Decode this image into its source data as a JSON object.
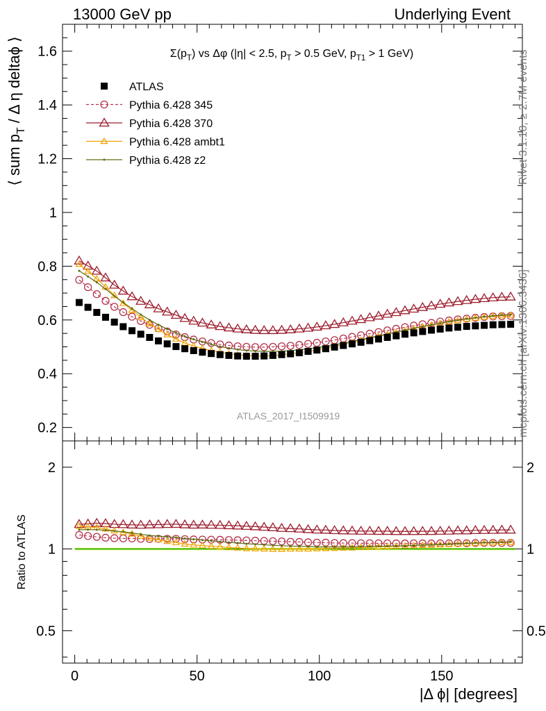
{
  "header": {
    "left": "13000 GeV pp",
    "right": "Underlying Event"
  },
  "side": {
    "rivet": "Rivet 3.1.10, ≥ 2.7M events",
    "mcplots": "mcplots.cern.ch [arXiv:1306.3436]"
  },
  "analysis_id": "ATLAS_2017_I1509919",
  "chart_data": [
    {
      "type": "scatter",
      "panel": "main",
      "title": "Σ(p_T) vs Δφ (|η| < 2.5, p_T > 0.5 GeV, p_T1 > 1 GeV)",
      "title_parts": [
        "Σ(p",
        "T",
        ") vs Δφ (|η| < 2.5, p",
        "T",
        " > 0.5 GeV, p",
        "T1",
        " > 1 GeV)"
      ],
      "xlabel": "|Δ ϕ| [degrees]",
      "ylabel": "⟨ sum p_T / Δ η deltaϕ ⟩",
      "ylabel_parts": [
        "⟨ sum p",
        "T",
        " / Δ η deltaϕ ⟩"
      ],
      "xlim": [
        -5,
        183
      ],
      "ylim": [
        0.15,
        1.7
      ],
      "yticks": [
        0.2,
        0.4,
        0.6,
        0.8,
        1,
        1.2,
        1.4,
        1.6
      ],
      "ytick_labels": [
        "0.2",
        "0.4",
        "0.6",
        "0.8",
        "1",
        "1.2",
        "1.4",
        "1.6"
      ],
      "legend_position": "top-left",
      "x": [
        1.8,
        5.4,
        9.0,
        12.6,
        16.2,
        19.8,
        23.4,
        27.0,
        30.6,
        34.2,
        37.8,
        41.4,
        45.0,
        48.6,
        52.2,
        55.8,
        59.4,
        63.0,
        66.6,
        70.2,
        73.8,
        77.4,
        81.0,
        84.6,
        88.2,
        91.8,
        95.4,
        99.0,
        102.6,
        106.2,
        109.8,
        113.4,
        117.0,
        120.6,
        124.2,
        127.8,
        131.4,
        135.0,
        138.6,
        142.2,
        145.8,
        149.4,
        153.0,
        156.6,
        160.2,
        163.8,
        167.4,
        171.0,
        174.6,
        178.2
      ],
      "series": [
        {
          "name": "ATLAS",
          "style": "atlas",
          "values": [
            0.665,
            0.647,
            0.628,
            0.61,
            0.592,
            0.575,
            0.56,
            0.547,
            0.535,
            0.522,
            0.511,
            0.501,
            0.493,
            0.486,
            0.48,
            0.475,
            0.471,
            0.468,
            0.466,
            0.465,
            0.465,
            0.466,
            0.468,
            0.471,
            0.474,
            0.478,
            0.483,
            0.488,
            0.493,
            0.499,
            0.505,
            0.511,
            0.517,
            0.523,
            0.529,
            0.535,
            0.541,
            0.547,
            0.552,
            0.557,
            0.562,
            0.566,
            0.57,
            0.573,
            0.576,
            0.578,
            0.58,
            0.582,
            0.583,
            0.584
          ]
        },
        {
          "name": "Pythia 6.428 345",
          "style": "p345",
          "values": [
            0.749,
            0.722,
            0.696,
            0.671,
            0.649,
            0.629,
            0.612,
            0.596,
            0.582,
            0.569,
            0.557,
            0.546,
            0.536,
            0.527,
            0.52,
            0.514,
            0.509,
            0.505,
            0.502,
            0.5,
            0.499,
            0.499,
            0.5,
            0.502,
            0.504,
            0.507,
            0.511,
            0.515,
            0.52,
            0.525,
            0.531,
            0.537,
            0.543,
            0.549,
            0.555,
            0.561,
            0.567,
            0.573,
            0.579,
            0.584,
            0.589,
            0.594,
            0.598,
            0.602,
            0.605,
            0.608,
            0.611,
            0.613,
            0.614,
            0.615
          ]
        },
        {
          "name": "Pythia 6.428 370",
          "style": "p370",
          "values": [
            0.82,
            0.801,
            0.782,
            0.757,
            0.73,
            0.708,
            0.687,
            0.67,
            0.657,
            0.642,
            0.63,
            0.618,
            0.606,
            0.596,
            0.589,
            0.582,
            0.576,
            0.571,
            0.567,
            0.564,
            0.562,
            0.561,
            0.561,
            0.562,
            0.564,
            0.567,
            0.57,
            0.574,
            0.579,
            0.584,
            0.59,
            0.596,
            0.602,
            0.609,
            0.615,
            0.622,
            0.628,
            0.635,
            0.641,
            0.647,
            0.653,
            0.659,
            0.664,
            0.669,
            0.673,
            0.677,
            0.68,
            0.683,
            0.685,
            0.686
          ]
        },
        {
          "name": "Pythia 6.428 ambt1",
          "style": "ambt1",
          "values": [
            0.807,
            0.781,
            0.753,
            0.723,
            0.691,
            0.662,
            0.636,
            0.61,
            0.586,
            0.565,
            0.545,
            0.529,
            0.514,
            0.503,
            0.494,
            0.486,
            0.48,
            0.474,
            0.47,
            0.467,
            0.466,
            0.466,
            0.467,
            0.47,
            0.474,
            0.478,
            0.483,
            0.489,
            0.495,
            0.502,
            0.509,
            0.516,
            0.524,
            0.531,
            0.539,
            0.546,
            0.554,
            0.561,
            0.568,
            0.575,
            0.581,
            0.587,
            0.593,
            0.598,
            0.603,
            0.607,
            0.611,
            0.614,
            0.616,
            0.618
          ]
        },
        {
          "name": "Pythia 6.428 z2",
          "style": "z2",
          "values": [
            0.783,
            0.762,
            0.74,
            0.715,
            0.689,
            0.665,
            0.642,
            0.62,
            0.6,
            0.582,
            0.566,
            0.552,
            0.539,
            0.528,
            0.518,
            0.509,
            0.501,
            0.495,
            0.49,
            0.486,
            0.484,
            0.483,
            0.483,
            0.484,
            0.486,
            0.489,
            0.493,
            0.497,
            0.502,
            0.508,
            0.514,
            0.52,
            0.527,
            0.534,
            0.541,
            0.548,
            0.555,
            0.562,
            0.569,
            0.576,
            0.582,
            0.588,
            0.594,
            0.599,
            0.604,
            0.608,
            0.612,
            0.615,
            0.618,
            0.62
          ]
        }
      ]
    },
    {
      "type": "scatter",
      "panel": "ratio",
      "ylabel": "Ratio to ATLAS",
      "xlabel": "|Δ ϕ| [degrees]",
      "xlim": [
        -5,
        183
      ],
      "ylim": [
        0.38,
        2.5
      ],
      "log_y": true,
      "yticks": [
        0.5,
        1,
        2
      ],
      "ytick_labels": [
        "0.5",
        "1",
        "2"
      ],
      "xticks": [
        0,
        50,
        100,
        150
      ],
      "xtick_labels": [
        "0",
        "50",
        "100",
        "150"
      ],
      "reference_band": [
        0.99,
        1.01
      ],
      "x": [
        1.8,
        5.4,
        9.0,
        12.6,
        16.2,
        19.8,
        23.4,
        27.0,
        30.6,
        34.2,
        37.8,
        41.4,
        45.0,
        48.6,
        52.2,
        55.8,
        59.4,
        63.0,
        66.6,
        70.2,
        73.8,
        77.4,
        81.0,
        84.6,
        88.2,
        91.8,
        95.4,
        99.0,
        102.6,
        106.2,
        109.8,
        113.4,
        117.0,
        120.6,
        124.2,
        127.8,
        131.4,
        135.0,
        138.6,
        142.2,
        145.8,
        149.4,
        153.0,
        156.6,
        160.2,
        163.8,
        167.4,
        171.0,
        174.6,
        178.2
      ],
      "series": [
        {
          "name": "Pythia 6.428 345",
          "style": "p345",
          "values": [
            1.126,
            1.116,
            1.108,
            1.1,
            1.096,
            1.094,
            1.093,
            1.09,
            1.088,
            1.09,
            1.09,
            1.09,
            1.087,
            1.084,
            1.083,
            1.082,
            1.081,
            1.079,
            1.077,
            1.075,
            1.073,
            1.071,
            1.068,
            1.066,
            1.063,
            1.061,
            1.058,
            1.055,
            1.055,
            1.052,
            1.051,
            1.051,
            1.05,
            1.05,
            1.049,
            1.049,
            1.048,
            1.048,
            1.049,
            1.048,
            1.048,
            1.049,
            1.049,
            1.051,
            1.05,
            1.052,
            1.053,
            1.053,
            1.053,
            1.053
          ]
        },
        {
          "name": "Pythia 6.428 370",
          "style": "p370",
          "values": [
            1.233,
            1.238,
            1.245,
            1.241,
            1.233,
            1.231,
            1.227,
            1.225,
            1.228,
            1.23,
            1.233,
            1.234,
            1.229,
            1.226,
            1.227,
            1.225,
            1.223,
            1.22,
            1.217,
            1.213,
            1.209,
            1.204,
            1.199,
            1.193,
            1.19,
            1.186,
            1.18,
            1.176,
            1.174,
            1.17,
            1.168,
            1.166,
            1.164,
            1.164,
            1.163,
            1.163,
            1.161,
            1.161,
            1.161,
            1.162,
            1.162,
            1.164,
            1.165,
            1.168,
            1.168,
            1.171,
            1.172,
            1.173,
            1.175,
            1.175
          ]
        },
        {
          "name": "Pythia 6.428 ambt1",
          "style": "ambt1",
          "values": [
            1.214,
            1.207,
            1.199,
            1.185,
            1.167,
            1.151,
            1.136,
            1.115,
            1.095,
            1.082,
            1.067,
            1.056,
            1.043,
            1.035,
            1.029,
            1.023,
            1.019,
            1.013,
            1.009,
            1.004,
            1.002,
            1.0,
            0.998,
            0.998,
            1.0,
            1.0,
            1.0,
            1.002,
            1.004,
            1.006,
            1.008,
            1.01,
            1.014,
            1.015,
            1.019,
            1.021,
            1.024,
            1.026,
            1.029,
            1.032,
            1.034,
            1.037,
            1.04,
            1.044,
            1.047,
            1.05,
            1.053,
            1.055,
            1.057,
            1.058
          ]
        },
        {
          "name": "Pythia 6.428 z2",
          "style": "z2",
          "values": [
            1.177,
            1.178,
            1.178,
            1.172,
            1.164,
            1.157,
            1.146,
            1.133,
            1.121,
            1.115,
            1.108,
            1.102,
            1.093,
            1.086,
            1.079,
            1.072,
            1.064,
            1.058,
            1.052,
            1.045,
            1.041,
            1.036,
            1.032,
            1.028,
            1.025,
            1.023,
            1.021,
            1.018,
            1.018,
            1.018,
            1.018,
            1.018,
            1.019,
            1.021,
            1.023,
            1.024,
            1.026,
            1.027,
            1.031,
            1.034,
            1.036,
            1.039,
            1.042,
            1.045,
            1.049,
            1.052,
            1.055,
            1.057,
            1.06,
            1.062
          ]
        }
      ]
    }
  ],
  "styles": {
    "atlas": {
      "color": "#000000",
      "marker": "square-filled",
      "line": "none"
    },
    "p345": {
      "color": "#b4324b",
      "marker": "circle-open",
      "line": "dashed"
    },
    "p370": {
      "color": "#9b1c2c",
      "marker": "triangle-open",
      "line": "solid"
    },
    "ambt1": {
      "color": "#f0a000",
      "marker": "triangle-open-small",
      "line": "solid"
    },
    "z2": {
      "color": "#5a6e14",
      "marker": "dot",
      "line": "solid"
    },
    "band": {
      "color": "#f0ff64"
    },
    "refline": {
      "color": "#00a000"
    }
  }
}
